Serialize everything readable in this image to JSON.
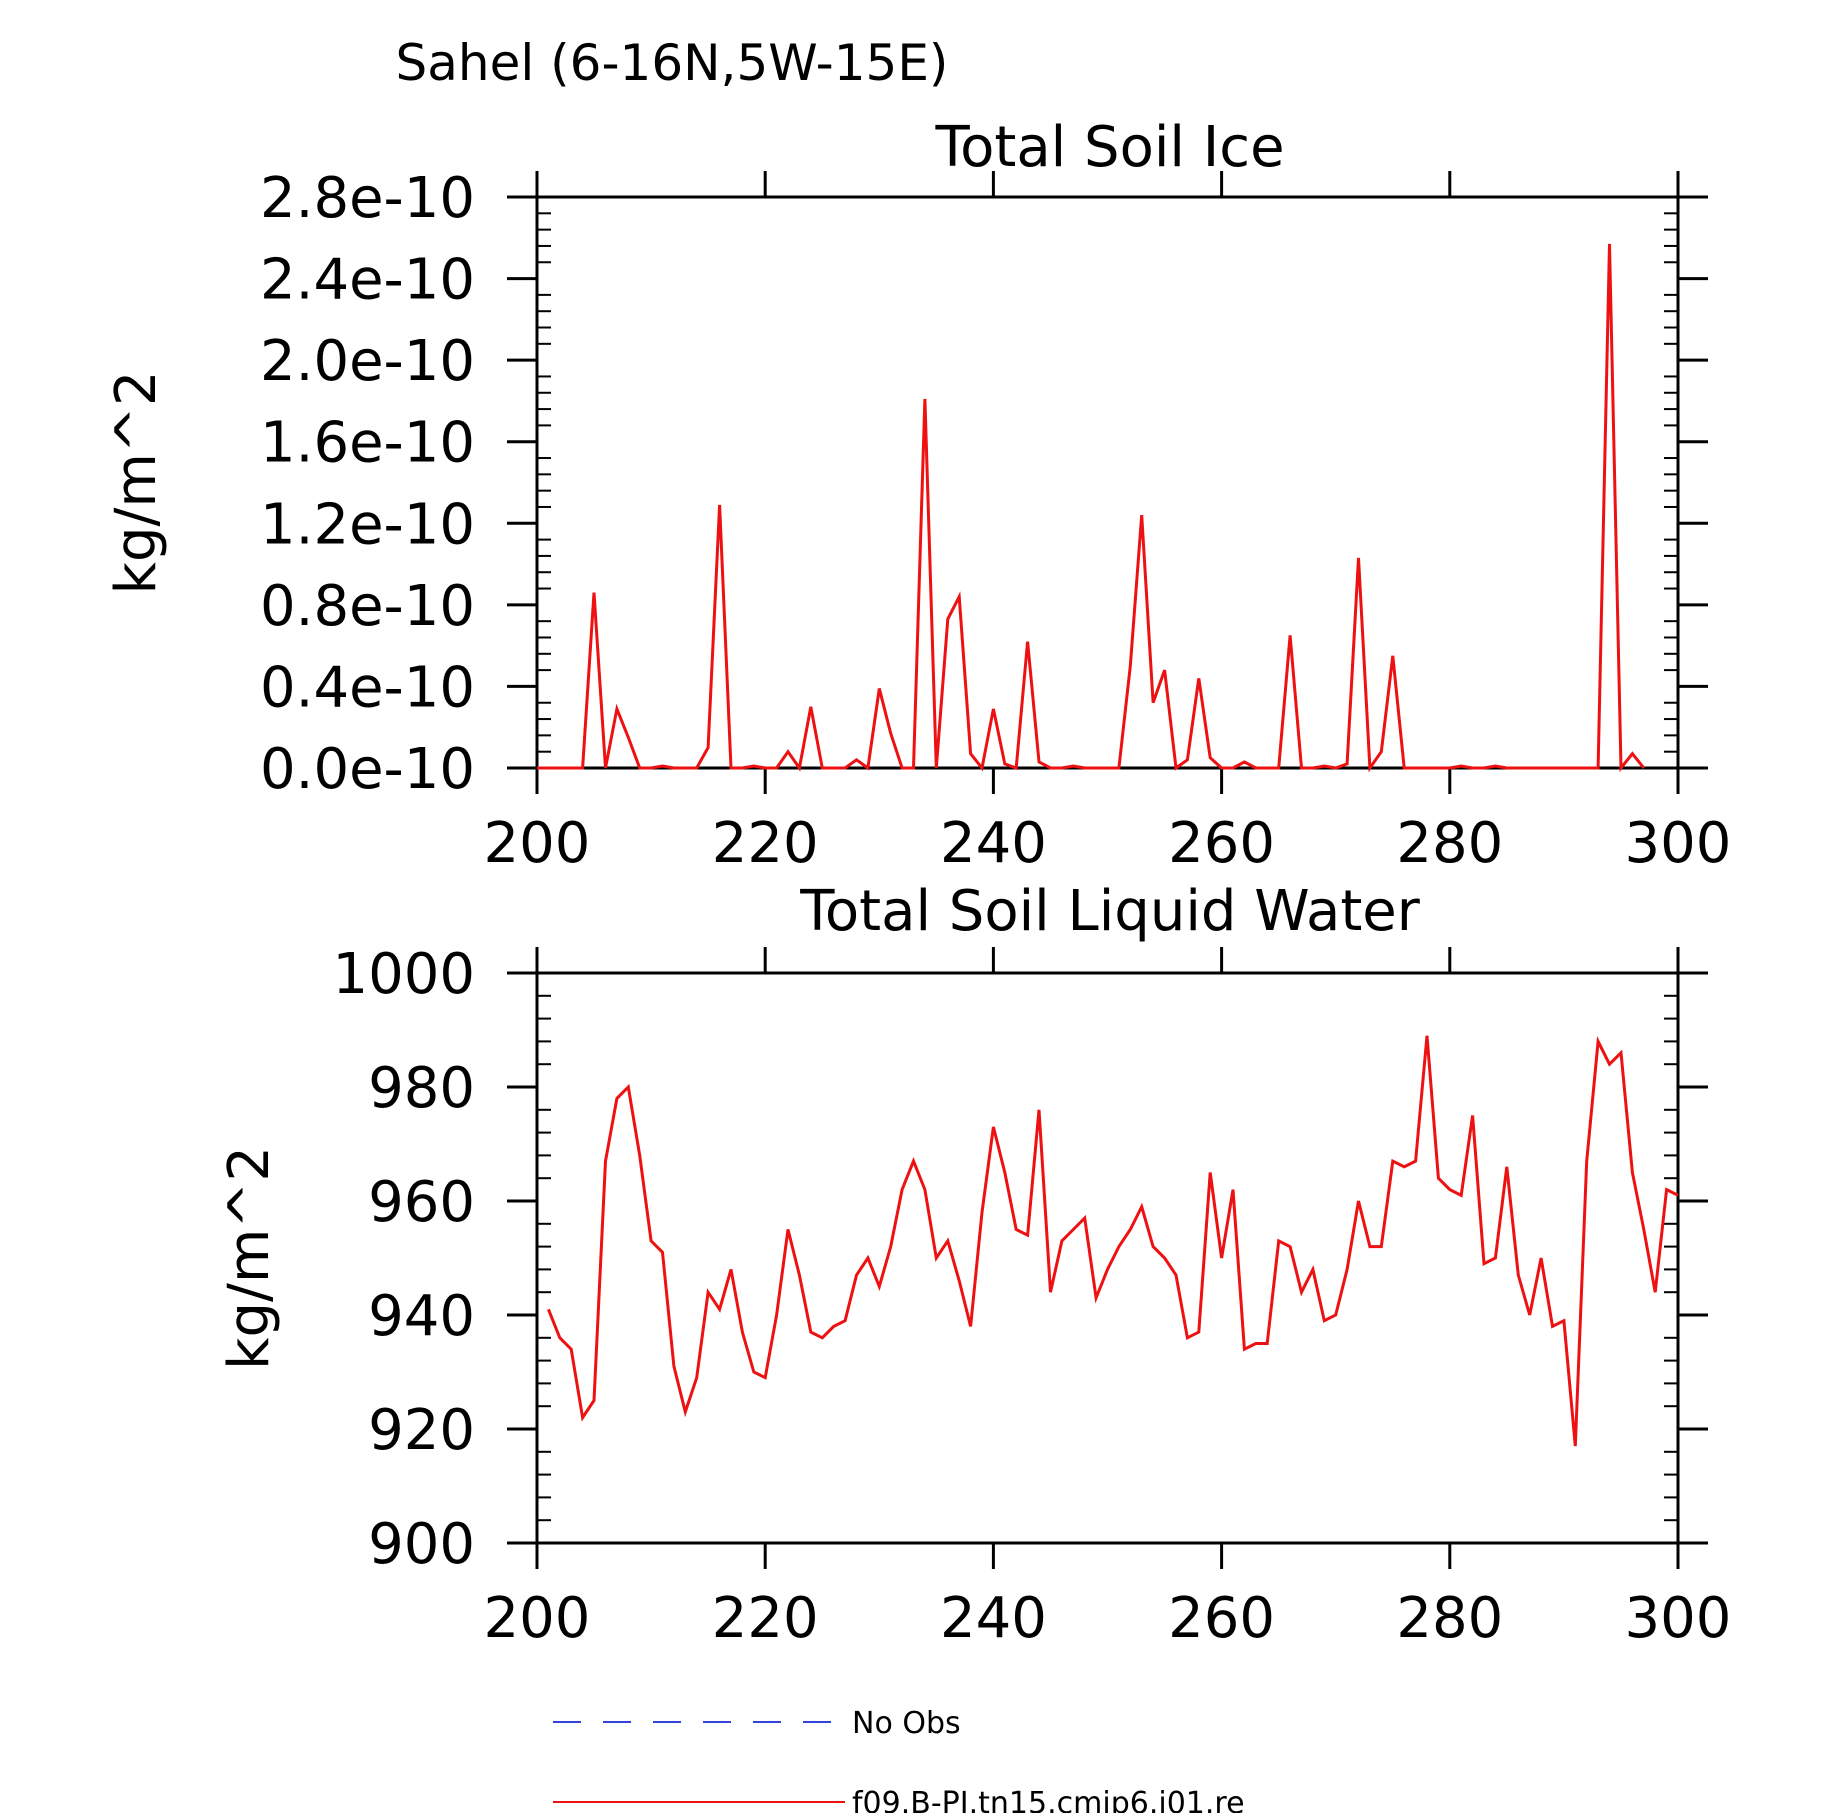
{
  "figure_title": "Sahel (6-16N,5W-15E)",
  "colors": {
    "model": "#ee1111",
    "obs": "#3344dd",
    "axis": "#000000"
  },
  "legend": [
    {
      "label": "No Obs",
      "style": "dashed",
      "color": "#3344dd"
    },
    {
      "label": "f09.B-PI.tn15.cmip6.j01.re",
      "style": "solid",
      "color": "#ee1111"
    }
  ],
  "chart_data": [
    {
      "type": "line",
      "title": "Total Soil Ice",
      "xlabel": "",
      "ylabel": "kg/m^2",
      "xlim": [
        200,
        300
      ],
      "ylim": [
        0,
        2.8e-10
      ],
      "xticks": [
        200,
        220,
        240,
        260,
        280,
        300
      ],
      "xtick_labels": [
        "200",
        "220",
        "240",
        "260",
        "280",
        "300"
      ],
      "yticks": [
        0,
        4e-11,
        8e-11,
        1.2e-10,
        1.6e-10,
        2e-10,
        2.4e-10,
        2.8e-10
      ],
      "ytick_labels": [
        "0.0e-10",
        "0.4e-10",
        "0.8e-10",
        "1.2e-10",
        "1.6e-10",
        "2.0e-10",
        "2.4e-10",
        "2.8e-10"
      ],
      "grid": false,
      "series": [
        {
          "color": "#ee1111",
          "x": [
            200,
            201,
            202,
            203,
            204,
            205,
            206,
            207,
            208,
            209,
            210,
            211,
            212,
            213,
            214,
            215,
            216,
            217,
            218,
            219,
            220,
            221,
            222,
            223,
            224,
            225,
            226,
            227,
            228,
            229,
            230,
            231,
            232,
            233,
            234,
            235,
            236,
            237,
            238,
            239,
            240,
            241,
            242,
            243,
            244,
            245,
            246,
            247,
            248,
            249,
            250,
            251,
            252,
            253,
            254,
            255,
            256,
            257,
            258,
            259,
            260,
            261,
            262,
            263,
            264,
            265,
            266,
            267,
            268,
            269,
            270,
            271,
            272,
            273,
            274,
            275,
            276,
            277,
            278,
            279,
            280,
            281,
            282,
            283,
            284,
            285,
            286,
            287,
            288,
            289,
            290,
            291,
            292,
            293,
            294,
            295,
            296,
            297
          ],
          "y": [
            0,
            0,
            0,
            0,
            0,
            8.6e-11,
            0,
            2.9e-11,
            1.5e-11,
            0,
            0,
            1e-12,
            0,
            0,
            0,
            1e-11,
            1.29e-10,
            0,
            0,
            1e-12,
            0,
            0,
            8e-12,
            0,
            3e-11,
            0,
            0,
            0,
            4e-12,
            0,
            3.9e-11,
            1.7e-11,
            0,
            0,
            1.81e-10,
            0,
            7.3e-11,
            8.4e-11,
            7e-12,
            0,
            2.9e-11,
            2e-12,
            0,
            6.2e-11,
            3e-12,
            0,
            0,
            1e-12,
            0,
            0,
            0,
            0,
            5e-11,
            1.24e-10,
            3.2e-11,
            4.8e-11,
            0,
            4e-12,
            4.4e-11,
            5e-12,
            0,
            0,
            3e-12,
            0,
            0,
            0,
            6.5e-11,
            0,
            0,
            1e-12,
            0,
            2e-12,
            1.03e-10,
            0,
            8e-12,
            5.5e-11,
            0,
            0,
            0,
            0,
            0,
            1e-12,
            0,
            0,
            1e-12,
            0,
            0,
            0,
            0,
            0,
            0,
            0,
            0,
            0,
            2.57e-10,
            0,
            7e-12,
            0
          ]
        }
      ]
    },
    {
      "type": "line",
      "title": "Total Soil Liquid Water",
      "xlabel": "",
      "ylabel": "kg/m^2",
      "xlim": [
        200,
        300
      ],
      "ylim": [
        900,
        1000
      ],
      "xticks": [
        200,
        220,
        240,
        260,
        280,
        300
      ],
      "xtick_labels": [
        "200",
        "220",
        "240",
        "260",
        "280",
        "300"
      ],
      "yticks": [
        900,
        920,
        940,
        960,
        980,
        1000
      ],
      "ytick_labels": [
        "900",
        "920",
        "940",
        "960",
        "980",
        "1000"
      ],
      "grid": false,
      "series": [
        {
          "color": "#ee1111",
          "x": [
            201,
            202,
            203,
            204,
            205,
            206,
            207,
            208,
            209,
            210,
            211,
            212,
            213,
            214,
            215,
            216,
            217,
            218,
            219,
            220,
            221,
            222,
            223,
            224,
            225,
            226,
            227,
            228,
            229,
            230,
            231,
            232,
            233,
            234,
            235,
            236,
            237,
            238,
            239,
            240,
            241,
            242,
            243,
            244,
            245,
            246,
            247,
            248,
            249,
            250,
            251,
            252,
            253,
            254,
            255,
            256,
            257,
            258,
            259,
            260,
            261,
            262,
            263,
            264,
            265,
            266,
            267,
            268,
            269,
            270,
            271,
            272,
            273,
            274,
            275,
            276,
            277,
            278,
            279,
            280,
            281,
            282,
            283,
            284,
            285,
            286,
            287,
            288,
            289,
            290,
            291,
            292,
            293,
            294,
            295,
            296,
            297,
            298,
            299,
            300
          ],
          "y": [
            941,
            936,
            934,
            922,
            925,
            967,
            978,
            980,
            968,
            953,
            951,
            931,
            923,
            929,
            944,
            941,
            948,
            937,
            930,
            929,
            940,
            955,
            947,
            937,
            936,
            938,
            939,
            947,
            950,
            945,
            952,
            962,
            967,
            962,
            950,
            953,
            946,
            938,
            958,
            973,
            965,
            955,
            954,
            976,
            944,
            953,
            955,
            957,
            943,
            948,
            952,
            955,
            959,
            952,
            950,
            947,
            936,
            937,
            965,
            950,
            962,
            934,
            935,
            935,
            953,
            952,
            944,
            948,
            939,
            940,
            948,
            960,
            952,
            952,
            967,
            966,
            967,
            989,
            964,
            962,
            961,
            975,
            949,
            950,
            966,
            947,
            940,
            950,
            938,
            939,
            917,
            967,
            988,
            984,
            986,
            965,
            955,
            944,
            962,
            961
          ]
        }
      ]
    }
  ]
}
